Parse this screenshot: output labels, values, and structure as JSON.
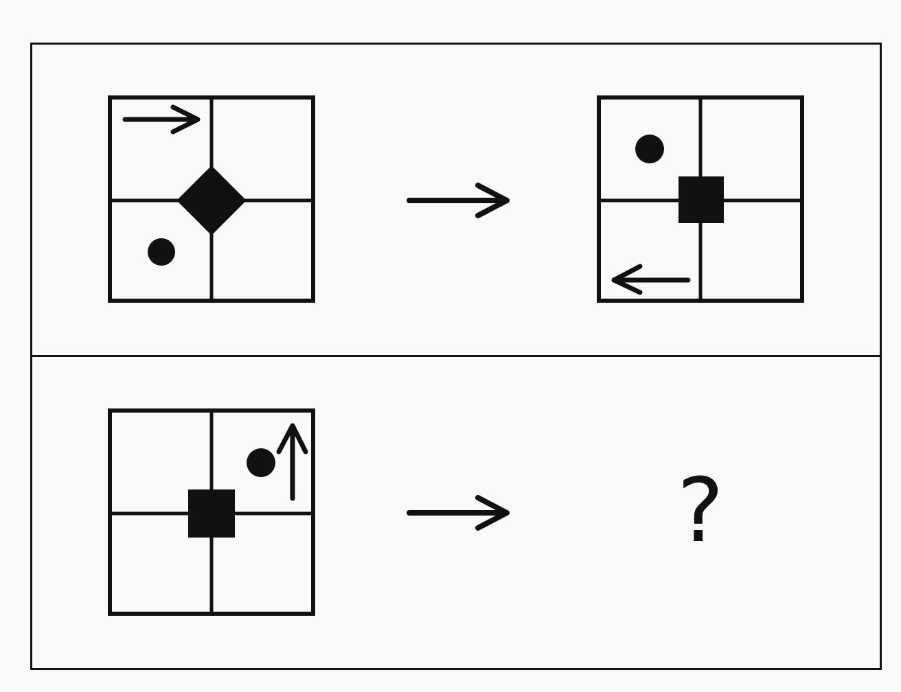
{
  "puzzle": {
    "rows": [
      {
        "source": {
          "center": "diamond",
          "dot_quadrant": "bottom-left",
          "arrow": {
            "quadrant": "top-left",
            "direction": "right"
          }
        },
        "transform_arrow": "right-arrow-icon",
        "target": {
          "center": "square",
          "dot_quadrant": "top-left",
          "arrow": {
            "quadrant": "bottom-left",
            "direction": "left"
          }
        }
      },
      {
        "source": {
          "center": "square",
          "dot_quadrant": "top-right",
          "arrow": {
            "quadrant": "top-right",
            "direction": "up"
          }
        },
        "transform_arrow": "right-arrow-icon",
        "target": {
          "unknown": true
        }
      }
    ],
    "answer_placeholder": "?",
    "colors": {
      "ink": "#111111",
      "background": "#f9f9f9"
    }
  }
}
